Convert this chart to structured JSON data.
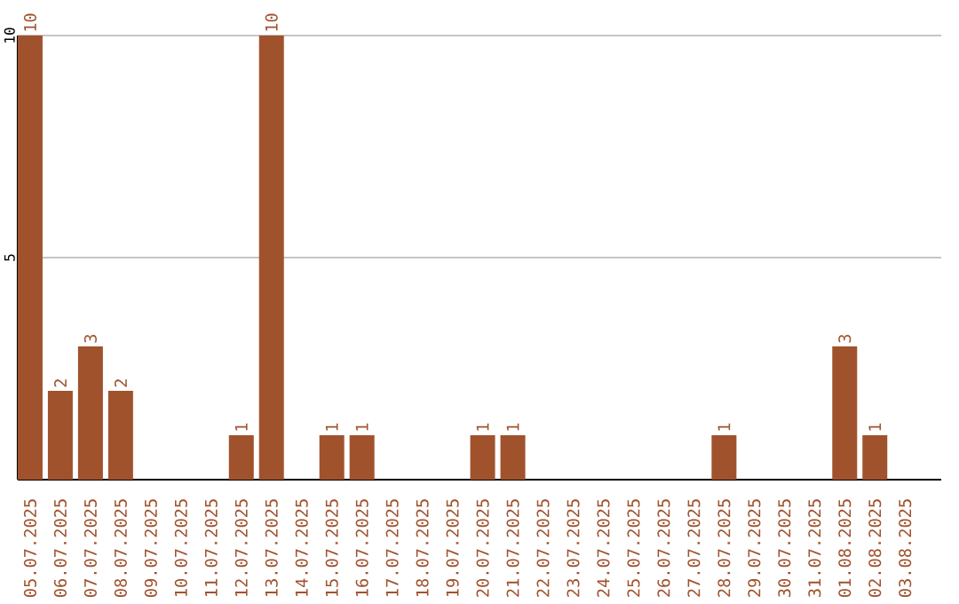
{
  "chart_data": {
    "type": "bar",
    "categories": [
      "05.07.2025",
      "06.07.2025",
      "07.07.2025",
      "08.07.2025",
      "09.07.2025",
      "10.07.2025",
      "11.07.2025",
      "12.07.2025",
      "13.07.2025",
      "14.07.2025",
      "15.07.2025",
      "16.07.2025",
      "17.07.2025",
      "18.07.2025",
      "19.07.2025",
      "20.07.2025",
      "21.07.2025",
      "22.07.2025",
      "23.07.2025",
      "24.07.2025",
      "25.07.2025",
      "26.07.2025",
      "27.07.2025",
      "28.07.2025",
      "29.07.2025",
      "30.07.2025",
      "31.07.2025",
      "01.08.2025",
      "02.08.2025",
      "03.08.2025"
    ],
    "values": [
      10,
      2,
      3,
      2,
      0,
      0,
      0,
      1,
      10,
      0,
      1,
      1,
      0,
      0,
      0,
      1,
      1,
      0,
      0,
      0,
      0,
      0,
      0,
      1,
      0,
      0,
      0,
      3,
      1,
      0
    ],
    "value_labels": [
      "10",
      "2",
      "3",
      "2",
      null,
      null,
      null,
      "1",
      "10",
      null,
      "1",
      "1",
      null,
      null,
      null,
      "1",
      "1",
      null,
      null,
      null,
      null,
      null,
      null,
      "1",
      null,
      null,
      null,
      "3",
      "1",
      null
    ],
    "color": "#a0522d",
    "ylim": [
      0,
      10
    ],
    "yticks": [
      5,
      10
    ],
    "grid": "y"
  }
}
